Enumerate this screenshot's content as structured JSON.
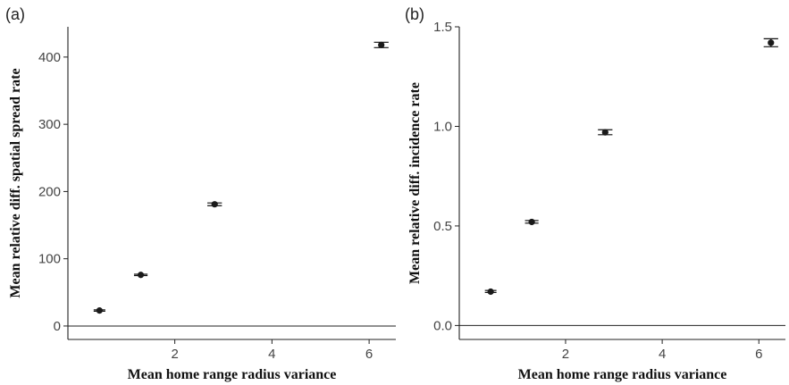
{
  "chart_data": [
    {
      "type": "scatter",
      "panel_label": "(a)",
      "title": "",
      "xlabel": "Mean home range radius variance",
      "ylabel": "Mean relative diff. spatial spread rate",
      "xlim": [
        -0.2,
        6.55
      ],
      "ylim": [
        -20,
        445
      ],
      "xticks": [
        2,
        4,
        6
      ],
      "yticks": [
        0,
        100,
        200,
        300,
        400
      ],
      "hline": 0,
      "grid": false,
      "points": [
        {
          "x": 0.45,
          "y": 23,
          "err_lo": 22,
          "err_hi": 24,
          "xerr": 0.12
        },
        {
          "x": 1.3,
          "y": 76,
          "err_lo": 75,
          "err_hi": 77,
          "xerr": 0.14
        },
        {
          "x": 2.82,
          "y": 181,
          "err_lo": 179,
          "err_hi": 183,
          "xerr": 0.15
        },
        {
          "x": 6.25,
          "y": 418,
          "err_lo": 414,
          "err_hi": 422,
          "xerr": 0.15
        }
      ]
    },
    {
      "type": "scatter",
      "panel_label": "(b)",
      "title": "",
      "xlabel": "Mean home range radius variance",
      "ylabel": "Mean relative diff. incidence rate",
      "xlim": [
        -0.2,
        6.55
      ],
      "ylim": [
        -0.07,
        1.5
      ],
      "xticks": [
        2,
        4,
        6
      ],
      "yticks": [
        0.0,
        0.5,
        1.0,
        1.5
      ],
      "ytick_labels": [
        "0.0",
        "0.5",
        "1.0",
        "1.5"
      ],
      "hline": 0,
      "grid": false,
      "points": [
        {
          "x": 0.45,
          "y": 0.17,
          "err_lo": 0.166,
          "err_hi": 0.176,
          "xerr": 0.12
        },
        {
          "x": 1.3,
          "y": 0.52,
          "err_lo": 0.514,
          "err_hi": 0.527,
          "xerr": 0.14
        },
        {
          "x": 2.82,
          "y": 0.97,
          "err_lo": 0.958,
          "err_hi": 0.983,
          "xerr": 0.15
        },
        {
          "x": 6.25,
          "y": 1.42,
          "err_lo": 1.4,
          "err_hi": 1.44,
          "xerr": 0.15
        }
      ]
    }
  ]
}
